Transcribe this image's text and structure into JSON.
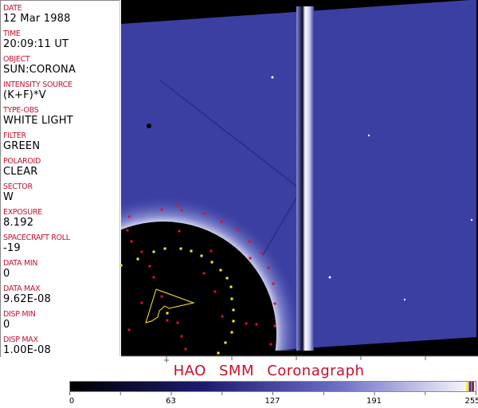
{
  "header_fields": [
    {
      "label": "DATE",
      "value": "12 Mar 1988"
    },
    {
      "label": "TIME",
      "value": "20:09:11 UT"
    },
    {
      "label": "OBJECT",
      "value": "SUN:CORONA"
    },
    {
      "label": "INTENSITY SOURCE",
      "value": "(K+F)*V"
    },
    {
      "label": "TYPE-OBS",
      "value": "WHITE LIGHT"
    },
    {
      "label": "FILTER",
      "value": "GREEN"
    },
    {
      "label": "POLAROID",
      "value": "CLEAR"
    },
    {
      "label": "SECTOR",
      "value": "W"
    },
    {
      "label": "EXPOSURE",
      "value": "8.192"
    },
    {
      "label": "SPACECRAFT ROLL",
      "value": "-19"
    },
    {
      "label": "DATA MIN",
      "value": "0"
    },
    {
      "label": "DATA MAX",
      "value": "9.62E-08"
    },
    {
      "label": "DISP MIN",
      "value": "0"
    },
    {
      "label": "DISP MAX",
      "value": "1.00E-08"
    }
  ],
  "title": "HAO   SMM Coronagraph",
  "colorbar": {
    "ticks": [
      "0",
      "63",
      "127",
      "191",
      "255"
    ],
    "colors": [
      "#000000",
      "#1c1c70",
      "#6e70c6",
      "#ffffff"
    ],
    "end_markers": [
      "#ffee33",
      "#1e3aa8",
      "#c8102e"
    ]
  },
  "colors": {
    "label": "#c8102e",
    "corona": "#3b3fa2",
    "marker_red": "#e0102a",
    "marker_yellow": "#ffee33"
  }
}
